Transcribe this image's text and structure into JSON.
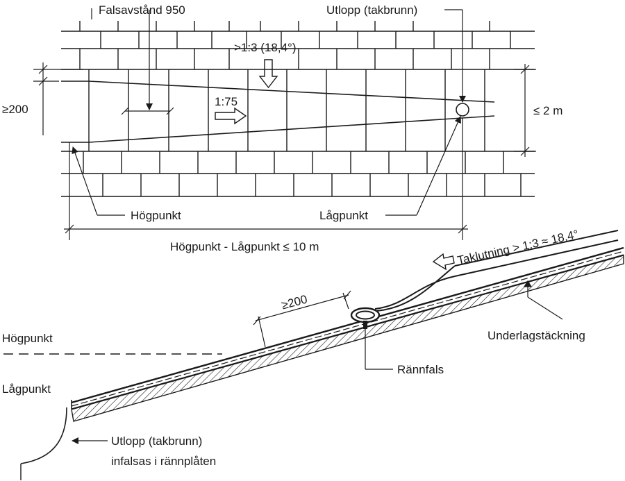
{
  "plan": {
    "seam_spacing": "Falsavstånd 950",
    "outlet": "Utlopp (takbrunn)",
    "steep_slope": ">1:3 (18,4°)",
    "gutter_slope": "1:75",
    "min_depth": "≥200",
    "max_width": "≤ 2 m",
    "high_point": "Högpunkt",
    "low_point": "Lågpunkt",
    "max_length": "Högpunkt - Lågpunkt ≤ 10 m"
  },
  "section": {
    "roof_pitch": "Taklutning > 1:3 ≈ 18,4°",
    "overlap": "≥200",
    "underlay": "Underlagstäckning",
    "gutter_seam": "Rännfals",
    "high_point": "Högpunkt",
    "low_point": "Lågpunkt",
    "outlet_line1": "Utlopp (takbrunn)",
    "outlet_line2": "infalsas i rännplåten"
  }
}
